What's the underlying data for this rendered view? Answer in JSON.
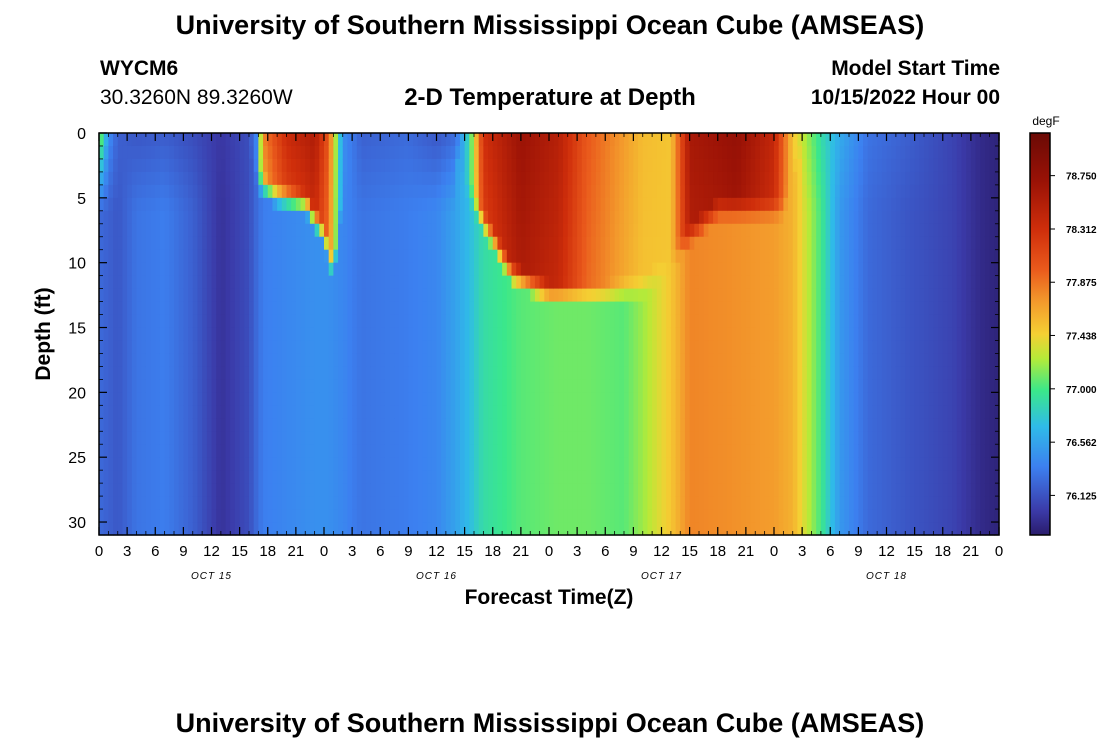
{
  "header": {
    "title": "University of Southern Mississippi Ocean Cube (AMSEAS)",
    "station_id": "WYCM6",
    "location": "30.3260N  89.3260W",
    "model_start_label": "Model Start Time",
    "model_start_value": "10/15/2022 Hour 00"
  },
  "footer": {
    "title": "University of Southern Mississippi Ocean Cube (AMSEAS)"
  },
  "chart_data": {
    "type": "heatmap",
    "title": "2-D Temperature at Depth",
    "xlabel": "Forecast Time(Z)",
    "ylabel": "Depth (ft)",
    "x_range_hours": [
      0,
      96
    ],
    "ylim": [
      0,
      31
    ],
    "y_ticks": [
      0,
      5,
      10,
      15,
      20,
      25,
      30
    ],
    "x_tick_labels": [
      "0",
      "3",
      "6",
      "9",
      "12",
      "15",
      "18",
      "21",
      "0",
      "3",
      "6",
      "9",
      "12",
      "15",
      "18",
      "21",
      "0",
      "3",
      "6",
      "9",
      "12",
      "15",
      "18",
      "21",
      "0",
      "3",
      "6",
      "9",
      "12",
      "15",
      "18",
      "21",
      "0"
    ],
    "date_labels": [
      "OCT 15",
      "OCT 16",
      "OCT 17",
      "OCT 18"
    ],
    "colorbar": {
      "unit": "degF",
      "range": [
        75.8,
        79.1
      ],
      "ticks": [
        "78.750",
        "78.312",
        "77.875",
        "77.438",
        "77.000",
        "76.562",
        "76.125"
      ]
    },
    "temperature_profiles": [
      {
        "hour": 0,
        "surface": 77.3,
        "deep": 76.25
      },
      {
        "hour": 1,
        "surface": 76.45,
        "deep": 76.2
      },
      {
        "hour": 2,
        "surface": 76.2,
        "deep": 76.15
      },
      {
        "hour": 4,
        "surface": 76.15,
        "deep": 76.3
      },
      {
        "hour": 7,
        "surface": 76.18,
        "deep": 76.35
      },
      {
        "hour": 10,
        "surface": 76.1,
        "deep": 76.2
      },
      {
        "hour": 13,
        "surface": 75.98,
        "deep": 75.95
      },
      {
        "hour": 16,
        "surface": 76.1,
        "deep": 76.1
      },
      {
        "hour": 16.8,
        "surface": 76.4,
        "deep": 76.25
      },
      {
        "hour": 17.5,
        "surface": 77.8,
        "deep": 76.35
      },
      {
        "hour": 20,
        "surface": 78.35,
        "deep": 76.4
      },
      {
        "hour": 23,
        "surface": 78.55,
        "deep": 76.45
      },
      {
        "hour": 24.5,
        "surface": 78.0,
        "deep": 76.45
      },
      {
        "hour": 26,
        "surface": 76.45,
        "deep": 76.4
      },
      {
        "hour": 28,
        "surface": 76.2,
        "deep": 76.3
      },
      {
        "hour": 33,
        "surface": 76.25,
        "deep": 76.35
      },
      {
        "hour": 36,
        "surface": 76.15,
        "deep": 76.4
      },
      {
        "hour": 38,
        "surface": 76.25,
        "deep": 76.55
      },
      {
        "hour": 39.5,
        "surface": 76.9,
        "deep": 76.7
      },
      {
        "hour": 41,
        "surface": 78.3,
        "deep": 76.9
      },
      {
        "hour": 45,
        "surface": 78.7,
        "deep": 77.05
      },
      {
        "hour": 49,
        "surface": 78.5,
        "deep": 77.1
      },
      {
        "hour": 52,
        "surface": 78.0,
        "deep": 77.1
      },
      {
        "hour": 56,
        "surface": 77.7,
        "deep": 77.05
      },
      {
        "hour": 58,
        "surface": 77.55,
        "deep": 77.2
      },
      {
        "hour": 61,
        "surface": 77.5,
        "deep": 77.5
      },
      {
        "hour": 63,
        "surface": 78.6,
        "deep": 77.8
      },
      {
        "hour": 68,
        "surface": 78.75,
        "deep": 77.75
      },
      {
        "hour": 72,
        "surface": 78.4,
        "deep": 77.7
      },
      {
        "hour": 74,
        "surface": 77.5,
        "deep": 77.6
      },
      {
        "hour": 77,
        "surface": 76.9,
        "deep": 77.0
      },
      {
        "hour": 79,
        "surface": 76.6,
        "deep": 76.5
      },
      {
        "hour": 82,
        "surface": 76.3,
        "deep": 76.25
      },
      {
        "hour": 86,
        "surface": 76.2,
        "deep": 76.15
      },
      {
        "hour": 91,
        "surface": 76.05,
        "deep": 76.05
      },
      {
        "hour": 94,
        "surface": 75.9,
        "deep": 75.9
      },
      {
        "hour": 96,
        "surface": 75.85,
        "deep": 75.85
      }
    ]
  }
}
